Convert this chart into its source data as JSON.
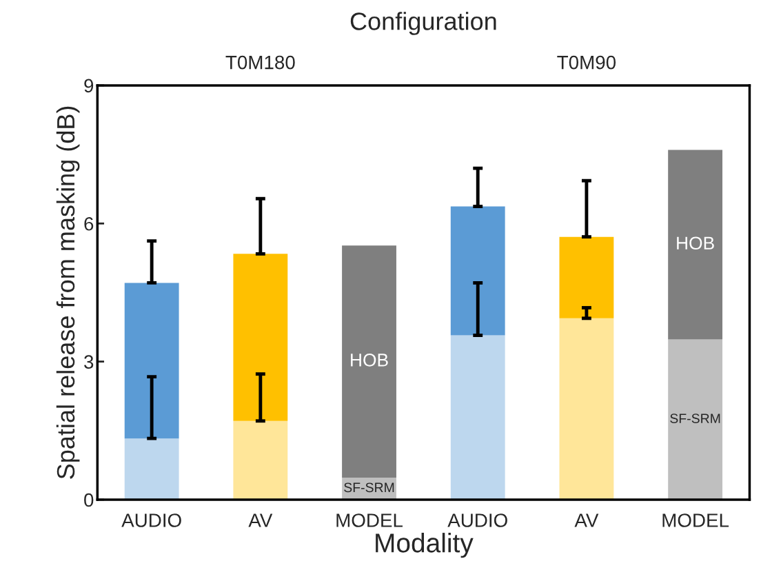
{
  "chart_data": {
    "type": "bar",
    "title": "Configuration",
    "xlabel": "Modality",
    "ylabel": "Spatial release from masking (dB)",
    "categories": [
      "AUDIO",
      "AV",
      "MODEL",
      "AUDIO",
      "AV",
      "MODEL"
    ],
    "annotations": [
      "T0M180",
      "T0M90"
    ],
    "stacked": true,
    "series": [
      {
        "colors": [
          "#bdd7ee",
          "#ffe699",
          "#bfbfbf",
          "#bdd7ee",
          "#ffe699",
          "#bfbfbf"
        ],
        "values": [
          1.33,
          1.71,
          0.48,
          3.57,
          3.94,
          3.48
        ],
        "errors": [
          [
            1.33,
            2.67
          ],
          [
            1.71,
            2.73
          ],
          null,
          [
            3.57,
            4.71
          ],
          [
            3.94,
            4.17
          ],
          null
        ],
        "value_labels": [
          null,
          null,
          "SF-SRM",
          null,
          null,
          "SF-SRM"
        ]
      },
      {
        "colors": [
          "#5b9bd5",
          "#ffc000",
          "#7f7f7f",
          "#5b9bd5",
          "#ffc000",
          "#7f7f7f"
        ],
        "values": [
          3.38,
          3.63,
          5.04,
          2.8,
          1.77,
          4.12
        ],
        "errors": [
          [
            4.71,
            5.62
          ],
          [
            5.34,
            6.54
          ],
          null,
          [
            6.37,
            7.2
          ],
          [
            5.71,
            6.93
          ],
          null
        ],
        "value_labels": [
          null,
          null,
          "HOB",
          null,
          null,
          "HOB"
        ]
      }
    ],
    "ylim": [
      0,
      9
    ],
    "yticks": [
      0,
      3,
      6,
      9
    ],
    "grid": false,
    "legend": false
  }
}
